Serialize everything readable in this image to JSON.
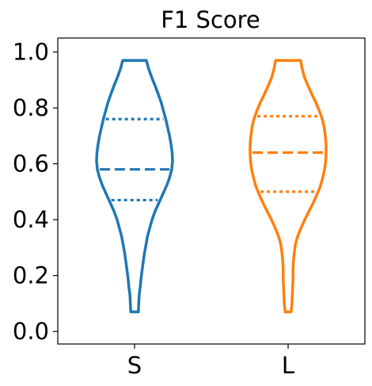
{
  "chart_data": {
    "type": "violin",
    "title": "F1 Score",
    "xlabel": "",
    "ylabel": "",
    "categories": [
      "S",
      "L"
    ],
    "ylim": [
      -0.045,
      1.05
    ],
    "yticks": [
      0.0,
      0.2,
      0.4,
      0.6,
      0.8,
      1.0
    ],
    "ytick_labels": [
      "0.0",
      "0.2",
      "0.4",
      "0.6",
      "0.8",
      "1.0"
    ],
    "grid": false,
    "series": [
      {
        "category": "S",
        "color": "#1f77b4",
        "min": 0.07,
        "max": 0.97,
        "q1": 0.47,
        "median": 0.58,
        "q3": 0.76,
        "density_profile": [
          [
            0.07,
            0.1
          ],
          [
            0.1,
            0.11
          ],
          [
            0.13,
            0.12
          ],
          [
            0.16,
            0.15
          ],
          [
            0.19,
            0.17
          ],
          [
            0.22,
            0.2
          ],
          [
            0.25,
            0.23
          ],
          [
            0.28,
            0.26
          ],
          [
            0.31,
            0.3
          ],
          [
            0.34,
            0.34
          ],
          [
            0.37,
            0.4
          ],
          [
            0.4,
            0.46
          ],
          [
            0.43,
            0.54
          ],
          [
            0.46,
            0.64
          ],
          [
            0.49,
            0.74
          ],
          [
            0.52,
            0.84
          ],
          [
            0.55,
            0.92
          ],
          [
            0.58,
            0.98
          ],
          [
            0.61,
            1.0
          ],
          [
            0.64,
            0.99
          ],
          [
            0.67,
            0.96
          ],
          [
            0.7,
            0.92
          ],
          [
            0.73,
            0.87
          ],
          [
            0.76,
            0.82
          ],
          [
            0.79,
            0.76
          ],
          [
            0.82,
            0.7
          ],
          [
            0.85,
            0.62
          ],
          [
            0.88,
            0.54
          ],
          [
            0.91,
            0.45
          ],
          [
            0.94,
            0.37
          ],
          [
            0.97,
            0.31
          ]
        ]
      },
      {
        "category": "L",
        "color": "#ff7f0e",
        "min": 0.07,
        "max": 0.97,
        "q1": 0.5,
        "median": 0.64,
        "q3": 0.77,
        "density_profile": [
          [
            0.07,
            0.08
          ],
          [
            0.1,
            0.1
          ],
          [
            0.13,
            0.11
          ],
          [
            0.16,
            0.12
          ],
          [
            0.19,
            0.13
          ],
          [
            0.22,
            0.13
          ],
          [
            0.25,
            0.14
          ],
          [
            0.28,
            0.16
          ],
          [
            0.31,
            0.19
          ],
          [
            0.34,
            0.25
          ],
          [
            0.37,
            0.34
          ],
          [
            0.4,
            0.44
          ],
          [
            0.43,
            0.55
          ],
          [
            0.46,
            0.66
          ],
          [
            0.49,
            0.76
          ],
          [
            0.52,
            0.85
          ],
          [
            0.55,
            0.91
          ],
          [
            0.58,
            0.96
          ],
          [
            0.61,
            0.99
          ],
          [
            0.64,
            1.0
          ],
          [
            0.67,
            1.0
          ],
          [
            0.7,
            0.98
          ],
          [
            0.73,
            0.95
          ],
          [
            0.76,
            0.9
          ],
          [
            0.79,
            0.82
          ],
          [
            0.82,
            0.73
          ],
          [
            0.85,
            0.62
          ],
          [
            0.88,
            0.52
          ],
          [
            0.91,
            0.43
          ],
          [
            0.94,
            0.37
          ],
          [
            0.97,
            0.33
          ]
        ]
      }
    ]
  }
}
